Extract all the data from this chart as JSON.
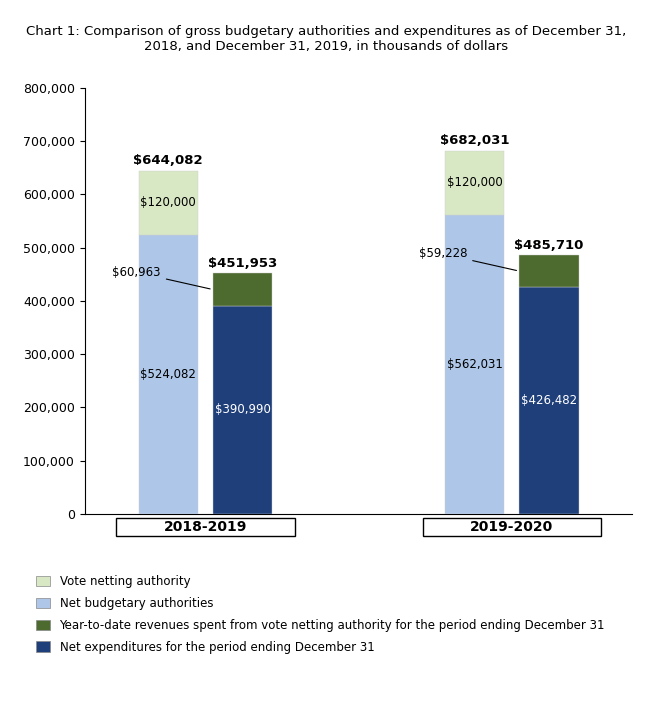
{
  "title": "Chart 1: Comparison of gross budgetary authorities and expenditures as of December 31,\n2018, and December 31, 2019, in thousands of dollars",
  "groups": [
    "2018-2019",
    "2019-2020"
  ],
  "bars": [
    {
      "group": 0,
      "position": "left",
      "segments": [
        {
          "label": "Net budgetary authorities",
          "value": 524082,
          "color": "#aec6e8"
        },
        {
          "label": "Vote netting authority",
          "value": 120000,
          "color": "#d9e8c4"
        }
      ],
      "total": 644082,
      "total_label": "$644,082",
      "total_bold": true,
      "seg_labels": [
        "$524,082",
        "$120,000"
      ],
      "seg_label_colors": [
        "black",
        "black"
      ]
    },
    {
      "group": 0,
      "position": "right",
      "segments": [
        {
          "label": "Net expenditures for the period ending December 31",
          "value": 390990,
          "color": "#1f3f7a"
        },
        {
          "label": "Year-to-date revenues spent from vote netting authority for the period ending December 31",
          "value": 60963,
          "color": "#4d6b2e"
        }
      ],
      "total": 451953,
      "total_label": "$451,953",
      "total_bold": true,
      "seg_labels": [
        "$390,990",
        null
      ],
      "seg_label_colors": [
        "white",
        null
      ],
      "annotation_label": "$60,963",
      "annotation_side": "left"
    },
    {
      "group": 1,
      "position": "left",
      "segments": [
        {
          "label": "Net budgetary authorities",
          "value": 562031,
          "color": "#aec6e8"
        },
        {
          "label": "Vote netting authority",
          "value": 120000,
          "color": "#d9e8c4"
        }
      ],
      "total": 682031,
      "total_label": "$682,031",
      "total_bold": true,
      "seg_labels": [
        "$562,031",
        "$120,000"
      ],
      "seg_label_colors": [
        "black",
        "black"
      ]
    },
    {
      "group": 1,
      "position": "right",
      "segments": [
        {
          "label": "Net expenditures for the period ending December 31",
          "value": 426482,
          "color": "#1f3f7a"
        },
        {
          "label": "Year-to-date revenues spent from vote netting authority for the period ending December 31",
          "value": 59228,
          "color": "#4d6b2e"
        }
      ],
      "total": 485710,
      "total_label": "$485,710",
      "total_bold": true,
      "seg_labels": [
        "$426,482",
        null
      ],
      "seg_label_colors": [
        "white",
        null
      ],
      "annotation_label": "$59,228",
      "annotation_side": "left"
    }
  ],
  "ylim": [
    0,
    800000
  ],
  "yticks": [
    0,
    100000,
    200000,
    300000,
    400000,
    500000,
    600000,
    700000,
    800000
  ],
  "legend_items": [
    {
      "label": "Vote netting authority",
      "color": "#d9e8c4"
    },
    {
      "label": "Net budgetary authorities",
      "color": "#aec6e8"
    },
    {
      "label": "Year-to-date revenues spent from vote netting authority for the period ending December 31",
      "color": "#4d6b2e"
    },
    {
      "label": "Net expenditures for the period ending December 31",
      "color": "#1f3f7a"
    }
  ],
  "bar_width": 0.32,
  "background_color": "#ffffff",
  "title_fontsize": 9.5
}
